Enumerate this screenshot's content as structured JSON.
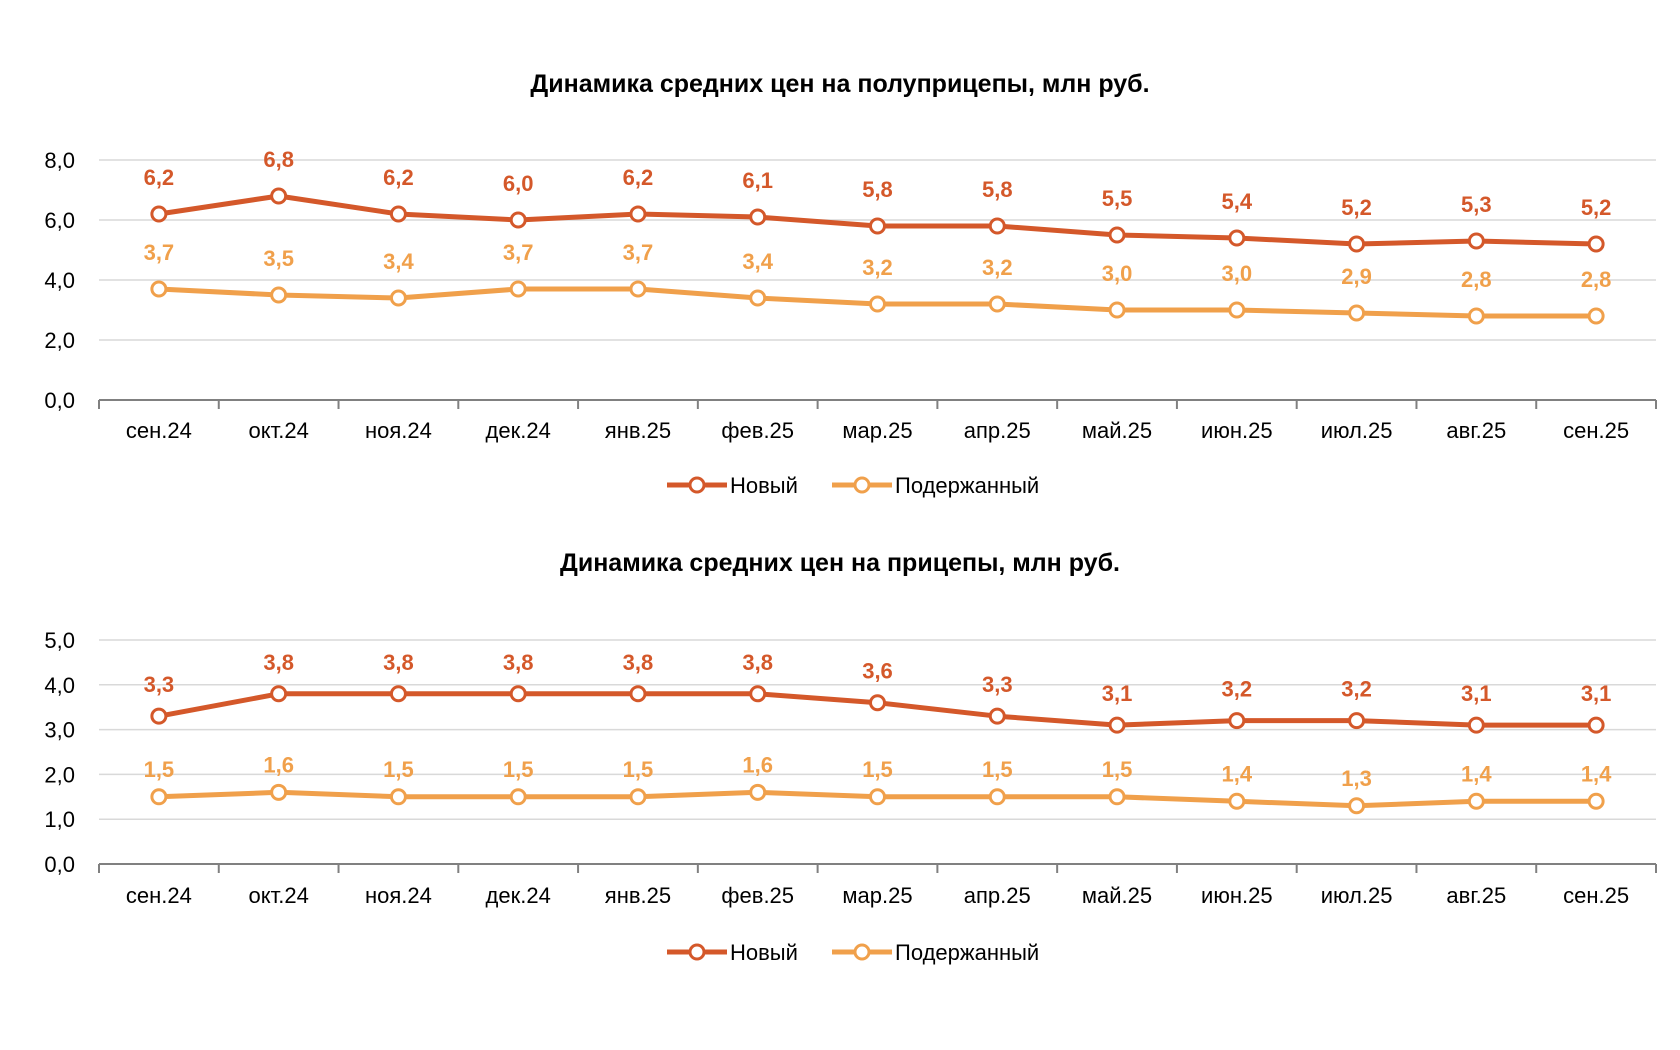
{
  "chart_data": [
    {
      "type": "line",
      "title": "Динамика средних цен на полуприцепы, млн руб.",
      "xlabel": "",
      "ylabel": "",
      "categories": [
        "сен.24",
        "окт.24",
        "ноя.24",
        "дек.24",
        "янв.25",
        "фев.25",
        "мар.25",
        "апр.25",
        "май.25",
        "июн.25",
        "июл.25",
        "авг.25",
        "сен.25"
      ],
      "ylim": [
        0,
        8
      ],
      "yticks": [
        0,
        2,
        4,
        6,
        8
      ],
      "ytick_labels": [
        "0,0",
        "2,0",
        "4,0",
        "6,0",
        "8,0"
      ],
      "grid": "horizontal",
      "legend_position": "bottom",
      "series": [
        {
          "name": "Новый",
          "color": "#d4582a",
          "values": [
            6.2,
            6.8,
            6.2,
            6.0,
            6.2,
            6.1,
            5.8,
            5.8,
            5.5,
            5.4,
            5.2,
            5.3,
            5.2
          ],
          "labels": [
            "6,2",
            "6,8",
            "6,2",
            "6,0",
            "6,2",
            "6,1",
            "5,8",
            "5,8",
            "5,5",
            "5,4",
            "5,2",
            "5,3",
            "5,2"
          ]
        },
        {
          "name": "Подержанный",
          "color": "#f0a04b",
          "values": [
            3.7,
            3.5,
            3.4,
            3.7,
            3.7,
            3.4,
            3.2,
            3.2,
            3.0,
            3.0,
            2.9,
            2.8,
            2.8
          ],
          "labels": [
            "3,7",
            "3,5",
            "3,4",
            "3,7",
            "3,7",
            "3,4",
            "3,2",
            "3,2",
            "3,0",
            "3,0",
            "2,9",
            "2,8",
            "2,8"
          ]
        }
      ]
    },
    {
      "type": "line",
      "title": "Динамика средних цен на прицепы, млн руб.",
      "xlabel": "",
      "ylabel": "",
      "categories": [
        "сен.24",
        "окт.24",
        "ноя.24",
        "дек.24",
        "янв.25",
        "фев.25",
        "мар.25",
        "апр.25",
        "май.25",
        "июн.25",
        "июл.25",
        "авг.25",
        "сен.25"
      ],
      "ylim": [
        0,
        5
      ],
      "yticks": [
        0,
        1,
        2,
        3,
        4,
        5
      ],
      "ytick_labels": [
        "0,0",
        "1,0",
        "2,0",
        "3,0",
        "4,0",
        "5,0"
      ],
      "grid": "horizontal",
      "legend_position": "bottom",
      "series": [
        {
          "name": "Новый",
          "color": "#d4582a",
          "values": [
            3.3,
            3.8,
            3.8,
            3.8,
            3.8,
            3.8,
            3.6,
            3.3,
            3.1,
            3.2,
            3.2,
            3.1,
            3.1
          ],
          "labels": [
            "3,3",
            "3,8",
            "3,8",
            "3,8",
            "3,8",
            "3,8",
            "3,6",
            "3,3",
            "3,1",
            "3,2",
            "3,2",
            "3,1",
            "3,1"
          ]
        },
        {
          "name": "Подержанный",
          "color": "#f0a04b",
          "values": [
            1.5,
            1.6,
            1.5,
            1.5,
            1.5,
            1.6,
            1.5,
            1.5,
            1.5,
            1.4,
            1.3,
            1.4,
            1.4
          ],
          "labels": [
            "1,5",
            "1,6",
            "1,5",
            "1,5",
            "1,5",
            "1,6",
            "1,5",
            "1,5",
            "1,5",
            "1,4",
            "1,3",
            "1,4",
            "1,4"
          ]
        }
      ]
    }
  ]
}
